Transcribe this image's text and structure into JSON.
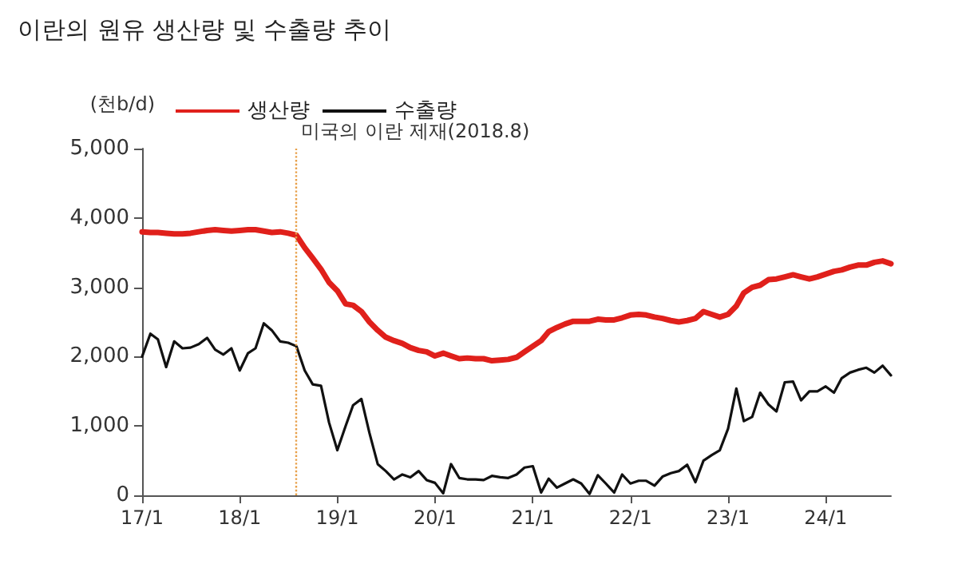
{
  "chart_data": {
    "type": "line",
    "title": "이란의 원유 생산량 및 수출량 추이",
    "ylabel": "(천b/d)",
    "x": [
      "2017-01",
      "2017-02",
      "2017-03",
      "2017-04",
      "2017-05",
      "2017-06",
      "2017-07",
      "2017-08",
      "2017-09",
      "2017-10",
      "2017-11",
      "2017-12",
      "2018-01",
      "2018-02",
      "2018-03",
      "2018-04",
      "2018-05",
      "2018-06",
      "2018-07",
      "2018-08",
      "2018-09",
      "2018-10",
      "2018-11",
      "2018-12",
      "2019-01",
      "2019-02",
      "2019-03",
      "2019-04",
      "2019-05",
      "2019-06",
      "2019-07",
      "2019-08",
      "2019-09",
      "2019-10",
      "2019-11",
      "2019-12",
      "2020-01",
      "2020-02",
      "2020-03",
      "2020-04",
      "2020-05",
      "2020-06",
      "2020-07",
      "2020-08",
      "2020-09",
      "2020-10",
      "2020-11",
      "2020-12",
      "2021-01",
      "2021-02",
      "2021-03",
      "2021-04",
      "2021-05",
      "2021-06",
      "2021-07",
      "2021-08",
      "2021-09",
      "2021-10",
      "2021-11",
      "2021-12",
      "2022-01",
      "2022-02",
      "2022-03",
      "2022-04",
      "2022-05",
      "2022-06",
      "2022-07",
      "2022-08",
      "2022-09",
      "2022-10",
      "2022-11",
      "2022-12",
      "2023-01",
      "2023-02",
      "2023-03",
      "2023-04",
      "2023-05",
      "2023-06",
      "2023-07",
      "2023-08",
      "2023-09",
      "2023-10",
      "2023-11",
      "2023-12",
      "2024-01",
      "2024-02",
      "2024-03",
      "2024-04",
      "2024-05",
      "2024-06",
      "2024-07",
      "2024-08",
      "2024-09"
    ],
    "series": [
      {
        "name": "생산량",
        "color": "#e0201b",
        "values": [
          3800,
          3790,
          3790,
          3780,
          3770,
          3770,
          3780,
          3800,
          3820,
          3830,
          3820,
          3810,
          3820,
          3830,
          3830,
          3810,
          3790,
          3800,
          3780,
          3750,
          3570,
          3420,
          3260,
          3070,
          2950,
          2760,
          2740,
          2650,
          2500,
          2380,
          2280,
          2230,
          2190,
          2130,
          2090,
          2070,
          2010,
          2050,
          2010,
          1970,
          1980,
          1970,
          1970,
          1940,
          1950,
          1960,
          1990,
          2070,
          2150,
          2230,
          2360,
          2420,
          2470,
          2510,
          2510,
          2510,
          2540,
          2530,
          2530,
          2560,
          2600,
          2610,
          2600,
          2570,
          2550,
          2520,
          2500,
          2520,
          2550,
          2650,
          2610,
          2570,
          2610,
          2730,
          2920,
          3000,
          3030,
          3110,
          3120,
          3150,
          3180,
          3150,
          3120,
          3150,
          3190,
          3230,
          3250,
          3290,
          3320,
          3320,
          3360,
          3380,
          3340
        ]
      },
      {
        "name": "수출량",
        "color": "#111111",
        "values": [
          2000,
          2330,
          2250,
          1850,
          2220,
          2120,
          2130,
          2180,
          2270,
          2100,
          2030,
          2120,
          1800,
          2050,
          2120,
          2480,
          2380,
          2220,
          2200,
          2150,
          1800,
          1600,
          1580,
          1050,
          650,
          1000,
          1300,
          1390,
          900,
          450,
          350,
          230,
          300,
          260,
          350,
          220,
          180,
          30,
          450,
          250,
          230,
          230,
          220,
          280,
          260,
          250,
          300,
          400,
          420,
          40,
          240,
          110,
          170,
          230,
          170,
          20,
          290,
          170,
          40,
          300,
          170,
          210,
          210,
          140,
          270,
          320,
          350,
          440,
          190,
          500,
          580,
          650,
          960,
          1540,
          1070,
          1130,
          1480,
          1310,
          1210,
          1630,
          1640,
          1370,
          1500,
          1500,
          1570,
          1480,
          1690,
          1770,
          1810,
          1840,
          1770,
          1870,
          1730
        ]
      }
    ],
    "xlim": [
      "2017-01",
      "2024-09"
    ],
    "xticks": [
      {
        "value": "2017-01",
        "label": "17/1"
      },
      {
        "value": "2018-01",
        "label": "18/1"
      },
      {
        "value": "2019-01",
        "label": "19/1"
      },
      {
        "value": "2020-01",
        "label": "20/1"
      },
      {
        "value": "2021-01",
        "label": "21/1"
      },
      {
        "value": "2022-01",
        "label": "22/1"
      },
      {
        "value": "2023-01",
        "label": "23/1"
      },
      {
        "value": "2024-01",
        "label": "24/1"
      }
    ],
    "ylim": [
      0,
      5000
    ],
    "yticks": [
      0,
      {
        "value": 1000,
        "label": "1,000"
      },
      {
        "value": 2000,
        "label": "2,000"
      },
      {
        "value": 3000,
        "label": "3,000"
      },
      {
        "value": 4000,
        "label": "4,000"
      },
      {
        "value": 5000,
        "label": "5,000"
      }
    ],
    "ref_lines": [
      {
        "axis": "x",
        "value": "2018-08",
        "label": "미국의 이란 제재(2018.8)",
        "color": "#e8a04a",
        "line_style": "dotted"
      }
    ],
    "legend": "top left",
    "grid": false,
    "marker": "none",
    "line_style": "solid"
  }
}
